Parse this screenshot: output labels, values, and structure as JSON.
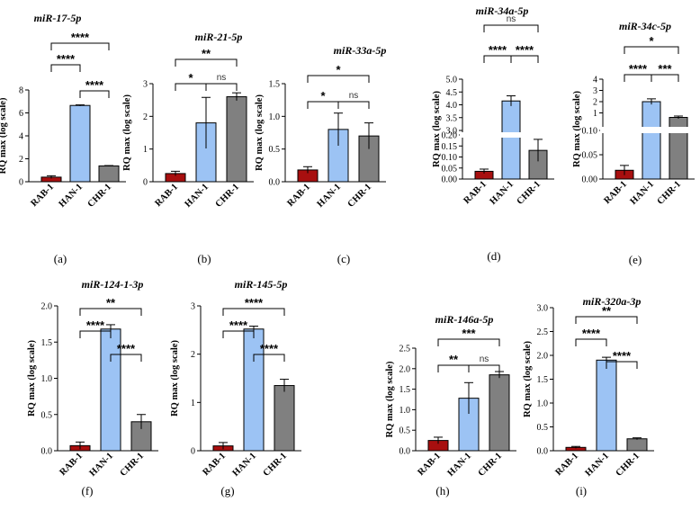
{
  "colors": {
    "rab": "#a80f0f",
    "han": "#9cc3f4",
    "chr": "#808080"
  },
  "chart_data": [
    {
      "type": "bar",
      "panel": "(a)",
      "title": "miR-17-5p",
      "ylabel": "RQ max (log scale)",
      "categories": [
        "RAB-1",
        "HAN-1",
        "CHR-1"
      ],
      "values": [
        0.4,
        6.65,
        1.38
      ],
      "errors": [
        0.12,
        0.05,
        0.03
      ],
      "ylim": [
        0,
        8
      ],
      "yticks": [
        "0",
        "2",
        "4",
        "6",
        "8"
      ],
      "ytick_values": [
        0,
        2,
        4,
        6,
        8
      ],
      "comparisons": [
        {
          "from": 0,
          "to": 2,
          "label": "****"
        },
        {
          "from": 0,
          "to": 1,
          "label": "****"
        },
        {
          "from": 1,
          "to": 2,
          "label": "****"
        }
      ]
    },
    {
      "type": "bar",
      "panel": "(b)",
      "title": "miR-21-5p",
      "ylabel": "RQ max (log scale)",
      "categories": [
        "RAB-1",
        "HAN-1",
        "CHR-1"
      ],
      "values": [
        0.25,
        1.8,
        2.6
      ],
      "errors": [
        0.07,
        0.78,
        0.12
      ],
      "ylim": [
        0,
        3
      ],
      "yticks": [
        "0",
        "1",
        "2",
        "3"
      ],
      "ytick_values": [
        0,
        1,
        2,
        3
      ],
      "comparisons": [
        {
          "from": 0,
          "to": 2,
          "label": "**"
        },
        {
          "from": 0,
          "to": 1,
          "label": "*"
        },
        {
          "from": 1,
          "to": 2,
          "label": "ns"
        }
      ]
    },
    {
      "type": "bar",
      "panel": "(c)",
      "title": "miR-33a-5p",
      "ylabel": "RQ max (log scale)",
      "categories": [
        "RAB-1",
        "HAN-1",
        "CHR-1"
      ],
      "values": [
        0.18,
        0.8,
        0.7
      ],
      "errors": [
        0.05,
        0.25,
        0.2
      ],
      "ylim": [
        0,
        1.5
      ],
      "yticks": [
        "0.0",
        "0.5",
        "1.0",
        "1.5"
      ],
      "ytick_values": [
        0,
        0.5,
        1.0,
        1.5
      ],
      "comparisons": [
        {
          "from": 0,
          "to": 2,
          "label": "*"
        },
        {
          "from": 0,
          "to": 1,
          "label": "*"
        },
        {
          "from": 1,
          "to": 2,
          "label": "ns"
        }
      ]
    },
    {
      "type": "bar",
      "panel": "(d)",
      "title": "miR-34a-5p",
      "ylabel": "RQ max (log scale)",
      "categories": [
        "RAB-1",
        "HAN-1",
        "CHR-1"
      ],
      "values": [
        0.035,
        4.15,
        0.13
      ],
      "errors": [
        0.01,
        0.2,
        0.05
      ],
      "axis_break": true,
      "lower_range": [
        0,
        0.2
      ],
      "upper_range": [
        3.0,
        5.0
      ],
      "yticks": [
        "0.00",
        "0.05",
        "0.10",
        "0.15",
        "0.20",
        "3.0",
        "3.5",
        "4.0",
        "4.5",
        "5.0"
      ],
      "ytick_values": [
        0,
        0.05,
        0.1,
        0.15,
        0.2,
        3.0,
        3.5,
        4.0,
        4.5,
        5.0
      ],
      "comparisons": [
        {
          "from": 0,
          "to": 2,
          "label": "ns"
        },
        {
          "from": 0,
          "to": 1,
          "label": "****"
        },
        {
          "from": 1,
          "to": 2,
          "label": "****"
        }
      ]
    },
    {
      "type": "bar",
      "panel": "(e)",
      "title": "miR-34c-5p",
      "ylabel": "RQ max (log scale)",
      "categories": [
        "RAB-1",
        "HAN-1",
        "CHR-1"
      ],
      "values": [
        0.018,
        2.0,
        0.6
      ],
      "errors": [
        0.01,
        0.25,
        0.12
      ],
      "axis_break": true,
      "lower_range": [
        0,
        0.1
      ],
      "upper_range": [
        0,
        4
      ],
      "yticks": [
        "0.00",
        "0.05",
        "0.10",
        "1",
        "2",
        "3",
        "4"
      ],
      "ytick_values": [
        0,
        0.05,
        0.1,
        1,
        2,
        3,
        4
      ],
      "comparisons": [
        {
          "from": 0,
          "to": 2,
          "label": "*"
        },
        {
          "from": 0,
          "to": 1,
          "label": "****"
        },
        {
          "from": 1,
          "to": 2,
          "label": "***"
        }
      ]
    },
    {
      "type": "bar",
      "panel": "(f)",
      "title": "miR-124-1-3p",
      "ylabel": "RQ max (log scale)",
      "categories": [
        "RAB-1",
        "HAN-1",
        "CHR-1"
      ],
      "values": [
        0.07,
        1.68,
        0.4
      ],
      "errors": [
        0.05,
        0.06,
        0.1
      ],
      "ylim": [
        0,
        2.0
      ],
      "yticks": [
        "0.0",
        "0.5",
        "1.0",
        "1.5",
        "2.0"
      ],
      "ytick_values": [
        0,
        0.5,
        1.0,
        1.5,
        2.0
      ],
      "comparisons": [
        {
          "from": 0,
          "to": 2,
          "label": "**"
        },
        {
          "from": 0,
          "to": 1,
          "label": "****"
        },
        {
          "from": 1,
          "to": 2,
          "label": "****"
        }
      ]
    },
    {
      "type": "bar",
      "panel": "(g)",
      "title": "miR-145-5p",
      "ylabel": "RQ max (log scale)",
      "categories": [
        "RAB-1",
        "HAN-1",
        "CHR-1"
      ],
      "values": [
        0.1,
        2.52,
        1.35
      ],
      "errors": [
        0.07,
        0.06,
        0.13
      ],
      "ylim": [
        0,
        3
      ],
      "yticks": [
        "0",
        "1",
        "2",
        "3"
      ],
      "ytick_values": [
        0,
        1,
        2,
        3
      ],
      "comparisons": [
        {
          "from": 0,
          "to": 2,
          "label": "****"
        },
        {
          "from": 0,
          "to": 1,
          "label": "****"
        },
        {
          "from": 1,
          "to": 2,
          "label": "****"
        }
      ]
    },
    {
      "type": "bar",
      "panel": "(h)",
      "title": "miR-146a-5p",
      "ylabel": "RQ max (log scale)",
      "categories": [
        "RAB-1",
        "HAN-1",
        "CHR-1"
      ],
      "values": [
        0.25,
        1.28,
        1.85
      ],
      "errors": [
        0.08,
        0.38,
        0.08
      ],
      "ylim": [
        0,
        2.5
      ],
      "yticks": [
        "0.0",
        "0.5",
        "1.0",
        "1.5",
        "2.0",
        "2.5"
      ],
      "ytick_values": [
        0,
        0.5,
        1.0,
        1.5,
        2.0,
        2.5
      ],
      "comparisons": [
        {
          "from": 0,
          "to": 2,
          "label": "***"
        },
        {
          "from": 0,
          "to": 1,
          "label": "**"
        },
        {
          "from": 1,
          "to": 2,
          "label": "ns"
        }
      ]
    },
    {
      "type": "bar",
      "panel": "(i)",
      "title": "miR-320a-3p",
      "ylabel": "RQ max (log scale)",
      "categories": [
        "RAB-1",
        "HAN-1",
        "CHR-1"
      ],
      "values": [
        0.07,
        1.9,
        0.25
      ],
      "errors": [
        0.02,
        0.06,
        0.02
      ],
      "ylim": [
        0,
        3.0
      ],
      "yticks": [
        "0.0",
        "0.5",
        "1.0",
        "1.5",
        "2.0",
        "2.5",
        "3.0"
      ],
      "ytick_values": [
        0,
        0.5,
        1.0,
        1.5,
        2.0,
        2.5,
        3.0
      ],
      "comparisons": [
        {
          "from": 0,
          "to": 2,
          "label": "**"
        },
        {
          "from": 0,
          "to": 1,
          "label": "****"
        },
        {
          "from": 1,
          "to": 2,
          "label": "****"
        }
      ]
    }
  ]
}
